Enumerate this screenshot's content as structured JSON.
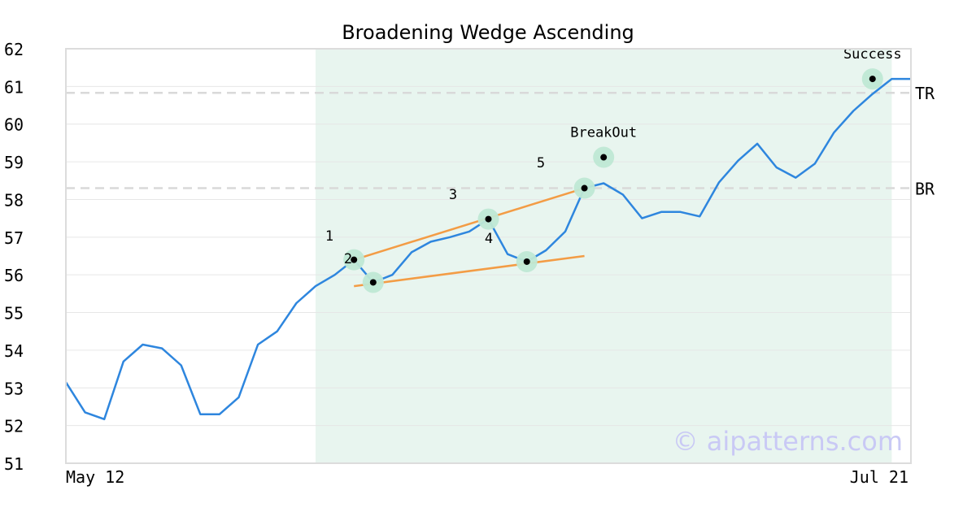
{
  "chart_data": {
    "type": "line",
    "title": "Broadening Wedge Ascending",
    "x_tick_labels": [
      "May 12",
      "Jul 21"
    ],
    "ylim": [
      51,
      62
    ],
    "y_ticks": [
      51,
      52,
      53,
      54,
      55,
      56,
      57,
      58,
      59,
      60,
      61,
      62
    ],
    "grid": true,
    "series": [
      {
        "values": [
          53.15,
          52.35,
          52.17,
          53.7,
          54.15,
          54.05,
          53.6,
          52.3,
          52.3,
          52.75,
          54.15,
          54.5,
          55.25,
          55.7,
          56.0,
          56.4,
          55.8,
          56.0,
          56.6,
          56.88,
          57.0,
          57.15,
          57.48,
          56.55,
          56.35,
          56.65,
          57.15,
          58.3,
          58.43,
          58.13,
          57.5,
          57.67,
          57.67,
          57.55,
          58.45,
          59.03,
          59.48,
          58.85,
          58.58,
          58.95,
          59.78,
          60.35,
          60.8,
          61.2,
          61.2
        ],
        "color": "#2e86de"
      }
    ],
    "highlight_region": {
      "start_index": 13,
      "end_index": 43,
      "color": "#e8f5ef"
    },
    "pattern_points": [
      {
        "label": "1",
        "index": 15,
        "value": 56.4
      },
      {
        "label": "2",
        "index": 16,
        "value": 55.8
      },
      {
        "label": "3",
        "index": 22,
        "value": 57.48
      },
      {
        "label": "4",
        "index": 24,
        "value": 56.35
      },
      {
        "label": "5",
        "index": 27,
        "value": 58.3
      }
    ],
    "trend_lines": [
      {
        "from": [
          15,
          56.4
        ],
        "to": [
          27,
          58.3
        ],
        "color": "#f39c45"
      },
      {
        "from": [
          15,
          55.7
        ],
        "to": [
          27,
          56.5
        ],
        "color": "#f39c45"
      }
    ],
    "annotations": [
      {
        "label": "BreakOut",
        "index": 28,
        "value": 59.12
      },
      {
        "label": "Success",
        "index": 42,
        "value": 61.2
      }
    ],
    "levels": [
      {
        "label": "TR",
        "value": 60.83
      },
      {
        "label": "BR",
        "value": 58.3
      }
    ],
    "watermark": "© aipatterns.com"
  }
}
